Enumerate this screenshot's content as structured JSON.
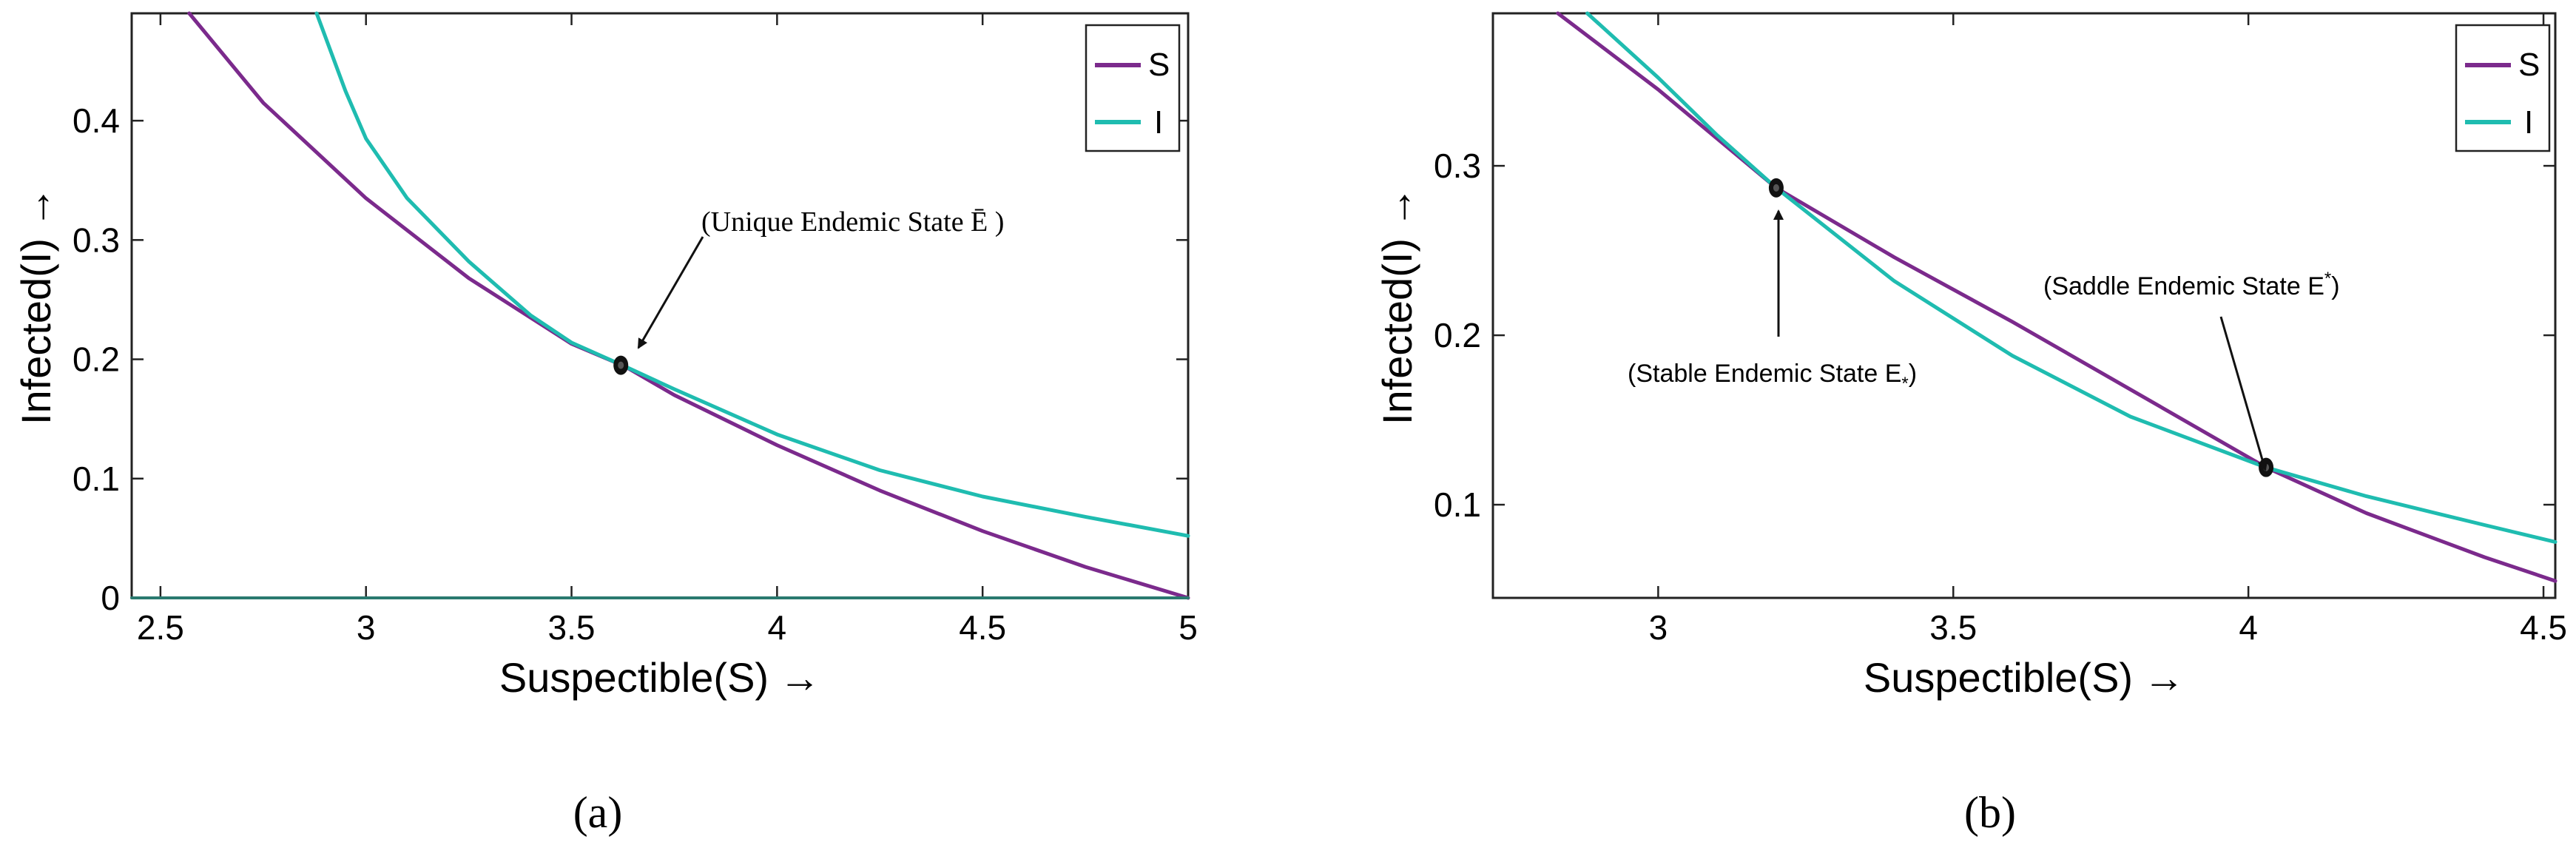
{
  "colors": {
    "S": "#7b2a8c",
    "I": "#1fbcb0",
    "zero_line": "#2a7a6f",
    "axis": "#222222",
    "marker": "#111111"
  },
  "chart_data": [
    {
      "panel_label": "(a)",
      "type": "line",
      "xlabel": "Suspectible(S)",
      "xlabel_arrow": "→",
      "ylabel": "Infected(I)",
      "ylabel_arrow": "→",
      "xlim": [
        2.43,
        5.0
      ],
      "ylim": [
        0,
        0.49
      ],
      "xticks": [
        2.5,
        3,
        3.5,
        4,
        4.5,
        5
      ],
      "xtick_labels": [
        "2.5",
        "3",
        "3.5",
        "4",
        "4.5",
        "5"
      ],
      "yticks": [
        0,
        0.1,
        0.2,
        0.3,
        0.4
      ],
      "ytick_labels": [
        "0",
        "0.1",
        "0.2",
        "0.3",
        "0.4"
      ],
      "legend": {
        "position": "top-right",
        "entries": [
          "S",
          "I"
        ]
      },
      "series": [
        {
          "name": "S",
          "x": [
            2.57,
            2.75,
            3.0,
            3.25,
            3.5,
            3.63,
            3.75,
            4.0,
            4.25,
            4.5,
            4.75,
            5.0
          ],
          "y": [
            0.49,
            0.415,
            0.335,
            0.268,
            0.213,
            0.194,
            0.17,
            0.128,
            0.09,
            0.056,
            0.026,
            0.0
          ]
        },
        {
          "name": "I",
          "x": [
            2.88,
            2.95,
            3.0,
            3.1,
            3.25,
            3.4,
            3.5,
            3.63,
            3.75,
            4.0,
            4.25,
            4.5,
            4.75,
            5.0
          ],
          "y": [
            0.49,
            0.425,
            0.385,
            0.335,
            0.282,
            0.237,
            0.214,
            0.194,
            0.175,
            0.137,
            0.107,
            0.085,
            0.068,
            0.052
          ]
        },
        {
          "name": "I = 0",
          "x": [
            2.43,
            5.0
          ],
          "y": [
            0,
            0
          ]
        }
      ],
      "points": [
        {
          "name": "unique-endemic-state",
          "x": 3.62,
          "y": 0.195
        }
      ],
      "annotations": [
        {
          "text": "(Unique Endemic State Ē )",
          "target": "unique-endemic-state"
        }
      ]
    },
    {
      "panel_label": "(b)",
      "type": "line",
      "xlabel": "Suspectible(S)",
      "xlabel_arrow": "→",
      "ylabel": "Infected(I)",
      "ylabel_arrow": "→",
      "xlim": [
        2.72,
        4.52
      ],
      "ylim": [
        0.045,
        0.39
      ],
      "xticks": [
        3,
        3.5,
        4,
        4.5
      ],
      "xtick_labels": [
        "3",
        "3.5",
        "4",
        "4.5"
      ],
      "yticks": [
        0.1,
        0.2,
        0.3
      ],
      "ytick_labels": [
        "0.1",
        "0.2",
        "0.3"
      ],
      "legend": {
        "position": "top-right",
        "entries": [
          "S",
          "I"
        ]
      },
      "series": [
        {
          "name": "S",
          "x": [
            2.83,
            3.0,
            3.2,
            3.4,
            3.6,
            3.8,
            4.03,
            4.2,
            4.4,
            4.52
          ],
          "y": [
            0.39,
            0.345,
            0.287,
            0.246,
            0.208,
            0.168,
            0.122,
            0.095,
            0.069,
            0.055
          ]
        },
        {
          "name": "I",
          "x": [
            2.88,
            3.0,
            3.1,
            3.2,
            3.4,
            3.6,
            3.8,
            4.03,
            4.2,
            4.4,
            4.52
          ],
          "y": [
            0.39,
            0.352,
            0.318,
            0.287,
            0.232,
            0.188,
            0.152,
            0.122,
            0.105,
            0.088,
            0.078
          ]
        }
      ],
      "points": [
        {
          "name": "stable-endemic-state",
          "x": 3.2,
          "y": 0.287
        },
        {
          "name": "saddle-endemic-state",
          "x": 4.03,
          "y": 0.122
        }
      ],
      "annotations": [
        {
          "text": "(Stable Endemic State E",
          "subscript": "*",
          "suffix": ")",
          "target": "stable-endemic-state"
        },
        {
          "text": "(Saddle Endemic State E",
          "superscript": "*",
          "suffix": ")",
          "target": "saddle-endemic-state"
        }
      ]
    }
  ]
}
